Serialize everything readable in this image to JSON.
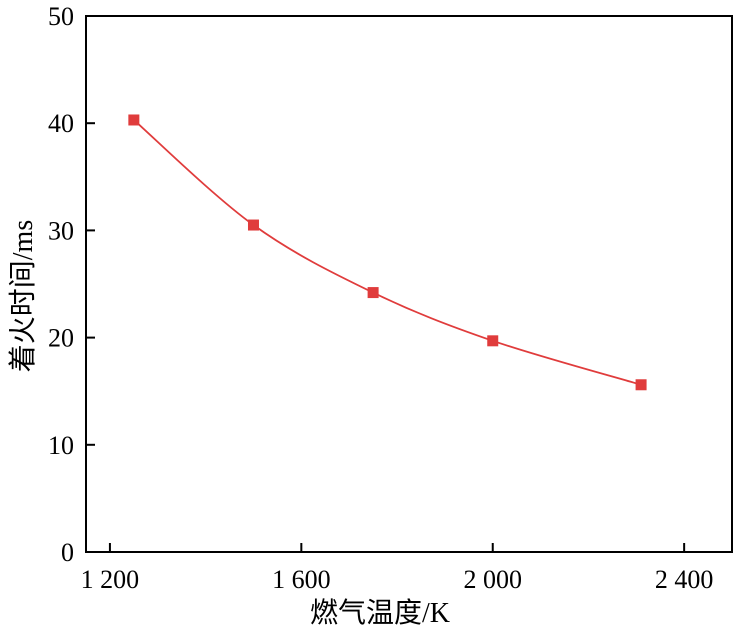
{
  "chart_data": {
    "type": "line",
    "title": "",
    "xlabel": "燃气温度/K",
    "ylabel": "着火时间/ms",
    "xlim": [
      1150,
      2500
    ],
    "ylim": [
      0,
      50
    ],
    "x_ticks": [
      1200,
      1600,
      2000,
      2400
    ],
    "x_tick_labels": [
      "1 200",
      "1 600",
      "2 000",
      "2 400"
    ],
    "y_ticks": [
      0,
      10,
      20,
      30,
      40,
      50
    ],
    "y_tick_labels": [
      "0",
      "10",
      "20",
      "30",
      "40",
      "50"
    ],
    "grid": false,
    "legend": "none",
    "series": [
      {
        "x": [
          1250,
          1500,
          1750,
          2000,
          2310
        ],
        "y": [
          40.3,
          30.5,
          24.2,
          19.7,
          15.6
        ],
        "color": "#e03c3c",
        "marker": "square",
        "line": "smooth"
      }
    ]
  }
}
